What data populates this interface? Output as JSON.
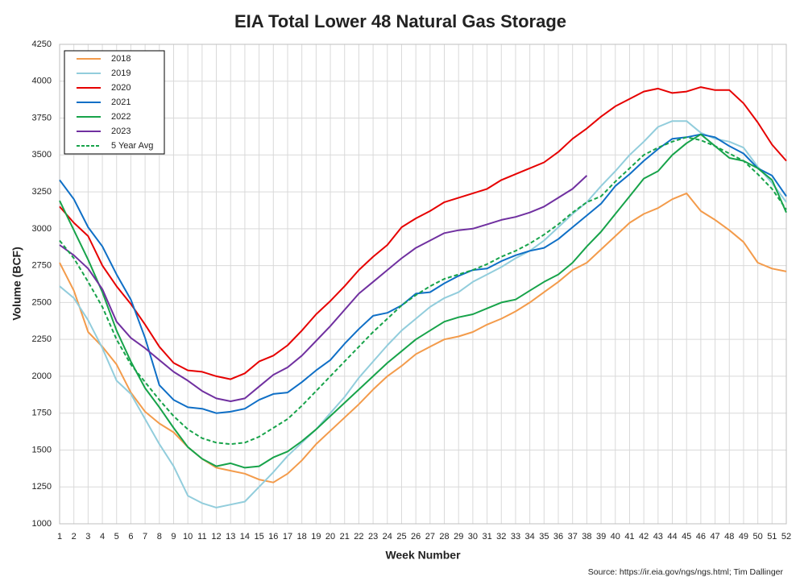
{
  "chart_data": {
    "type": "line",
    "title": "EIA Total Lower 48 Natural Gas Storage",
    "x_label": "Week Number",
    "y_label": "Volume (BCF)",
    "annotation": "Source: https://ir.eia.gov/ngs/ngs.html; Tim Dallinger",
    "x": [
      1,
      2,
      3,
      4,
      5,
      6,
      7,
      8,
      9,
      10,
      11,
      12,
      13,
      14,
      15,
      16,
      17,
      18,
      19,
      20,
      21,
      22,
      23,
      24,
      25,
      26,
      27,
      28,
      29,
      30,
      31,
      32,
      33,
      34,
      35,
      36,
      37,
      38,
      39,
      40,
      41,
      42,
      43,
      44,
      45,
      46,
      47,
      48,
      49,
      50,
      51,
      52
    ],
    "xlim": [
      1,
      52
    ],
    "xticks": [
      1,
      2,
      3,
      4,
      5,
      6,
      7,
      8,
      9,
      10,
      11,
      12,
      13,
      14,
      15,
      16,
      17,
      18,
      19,
      20,
      21,
      22,
      23,
      24,
      25,
      26,
      27,
      28,
      29,
      30,
      31,
      32,
      33,
      34,
      35,
      36,
      37,
      38,
      39,
      40,
      41,
      42,
      43,
      44,
      45,
      46,
      47,
      48,
      49,
      50,
      51,
      52
    ],
    "ylim": [
      1000,
      4250
    ],
    "yticks": [
      1000,
      1250,
      1500,
      1750,
      2000,
      2250,
      2500,
      2750,
      3000,
      3250,
      3500,
      3750,
      4000,
      4250
    ],
    "grid": true,
    "legend": "upper left",
    "series": [
      {
        "name": "2018",
        "color": "#f39b4b",
        "style": "solid",
        "values": [
          2770,
          2580,
          2300,
          2200,
          2080,
          1890,
          1760,
          1680,
          1620,
          1520,
          1440,
          1380,
          1360,
          1340,
          1300,
          1280,
          1340,
          1430,
          1540,
          1630,
          1720,
          1810,
          1910,
          2000,
          2070,
          2150,
          2200,
          2250,
          2270,
          2300,
          2350,
          2390,
          2440,
          2500,
          2570,
          2640,
          2720,
          2770,
          2860,
          2950,
          3040,
          3100,
          3140,
          3200,
          3240,
          3120,
          3060,
          2990,
          2910,
          2770,
          2730,
          2710
        ]
      },
      {
        "name": "2019",
        "color": "#92cddc",
        "style": "solid",
        "values": [
          2610,
          2530,
          2380,
          2190,
          1970,
          1880,
          1710,
          1540,
          1390,
          1190,
          1140,
          1110,
          1130,
          1150,
          1250,
          1350,
          1460,
          1550,
          1640,
          1750,
          1860,
          1990,
          2100,
          2210,
          2310,
          2390,
          2470,
          2530,
          2570,
          2640,
          2690,
          2740,
          2800,
          2850,
          2920,
          3010,
          3100,
          3180,
          3290,
          3390,
          3500,
          3590,
          3690,
          3730,
          3730,
          3650,
          3610,
          3590,
          3550,
          3420,
          3310,
          3180
        ]
      },
      {
        "name": "2020",
        "color": "#e60000",
        "style": "solid",
        "values": [
          3150,
          3040,
          2950,
          2750,
          2610,
          2490,
          2350,
          2200,
          2090,
          2040,
          2030,
          2000,
          1980,
          2020,
          2100,
          2140,
          2210,
          2310,
          2420,
          2510,
          2610,
          2720,
          2810,
          2890,
          3010,
          3070,
          3120,
          3180,
          3210,
          3240,
          3270,
          3330,
          3370,
          3410,
          3450,
          3520,
          3610,
          3680,
          3760,
          3830,
          3880,
          3930,
          3950,
          3920,
          3930,
          3960,
          3940,
          3940,
          3850,
          3720,
          3570,
          3460
        ]
      },
      {
        "name": "2021",
        "color": "#0f6fc6",
        "style": "solid",
        "values": [
          3330,
          3200,
          3010,
          2880,
          2690,
          2520,
          2260,
          1940,
          1840,
          1790,
          1780,
          1750,
          1760,
          1780,
          1840,
          1880,
          1890,
          1960,
          2040,
          2110,
          2220,
          2320,
          2410,
          2430,
          2480,
          2560,
          2570,
          2630,
          2680,
          2720,
          2730,
          2780,
          2820,
          2850,
          2870,
          2930,
          3010,
          3090,
          3170,
          3290,
          3370,
          3460,
          3540,
          3610,
          3620,
          3640,
          3620,
          3560,
          3510,
          3410,
          3360,
          3220
        ]
      },
      {
        "name": "2022",
        "color": "#17a34a",
        "style": "solid",
        "values": [
          3190,
          2990,
          2790,
          2570,
          2310,
          2100,
          1920,
          1790,
          1650,
          1520,
          1440,
          1390,
          1410,
          1380,
          1390,
          1450,
          1490,
          1560,
          1640,
          1730,
          1820,
          1910,
          2000,
          2090,
          2170,
          2250,
          2310,
          2370,
          2400,
          2420,
          2460,
          2500,
          2520,
          2580,
          2640,
          2690,
          2770,
          2880,
          2980,
          3100,
          3220,
          3340,
          3390,
          3500,
          3580,
          3640,
          3560,
          3480,
          3460,
          3410,
          3330,
          3110
        ]
      },
      {
        "name": "2023",
        "color": "#7030a0",
        "style": "solid",
        "values": [
          2890,
          2820,
          2730,
          2590,
          2370,
          2260,
          2190,
          2110,
          2030,
          1970,
          1900,
          1850,
          1830,
          1850,
          1930,
          2010,
          2060,
          2140,
          2240,
          2340,
          2450,
          2560,
          2640,
          2720,
          2800,
          2870,
          2920,
          2970,
          2990,
          3000,
          3030,
          3060,
          3080,
          3110,
          3150,
          3210,
          3270,
          3360,
          null,
          null,
          null,
          null,
          null,
          null,
          null,
          null,
          null,
          null,
          null,
          null,
          null,
          null
        ]
      },
      {
        "name": "5 Year Avg",
        "color": "#17a34a",
        "style": "dashed",
        "values": [
          2920,
          2800,
          2640,
          2470,
          2250,
          2080,
          1960,
          1840,
          1730,
          1640,
          1580,
          1550,
          1540,
          1550,
          1590,
          1650,
          1710,
          1800,
          1900,
          2000,
          2100,
          2200,
          2300,
          2390,
          2480,
          2550,
          2610,
          2660,
          2690,
          2720,
          2760,
          2810,
          2850,
          2900,
          2960,
          3030,
          3110,
          3180,
          3220,
          3320,
          3410,
          3500,
          3550,
          3590,
          3620,
          3600,
          3560,
          3510,
          3460,
          3370,
          3270,
          3130
        ]
      }
    ]
  }
}
